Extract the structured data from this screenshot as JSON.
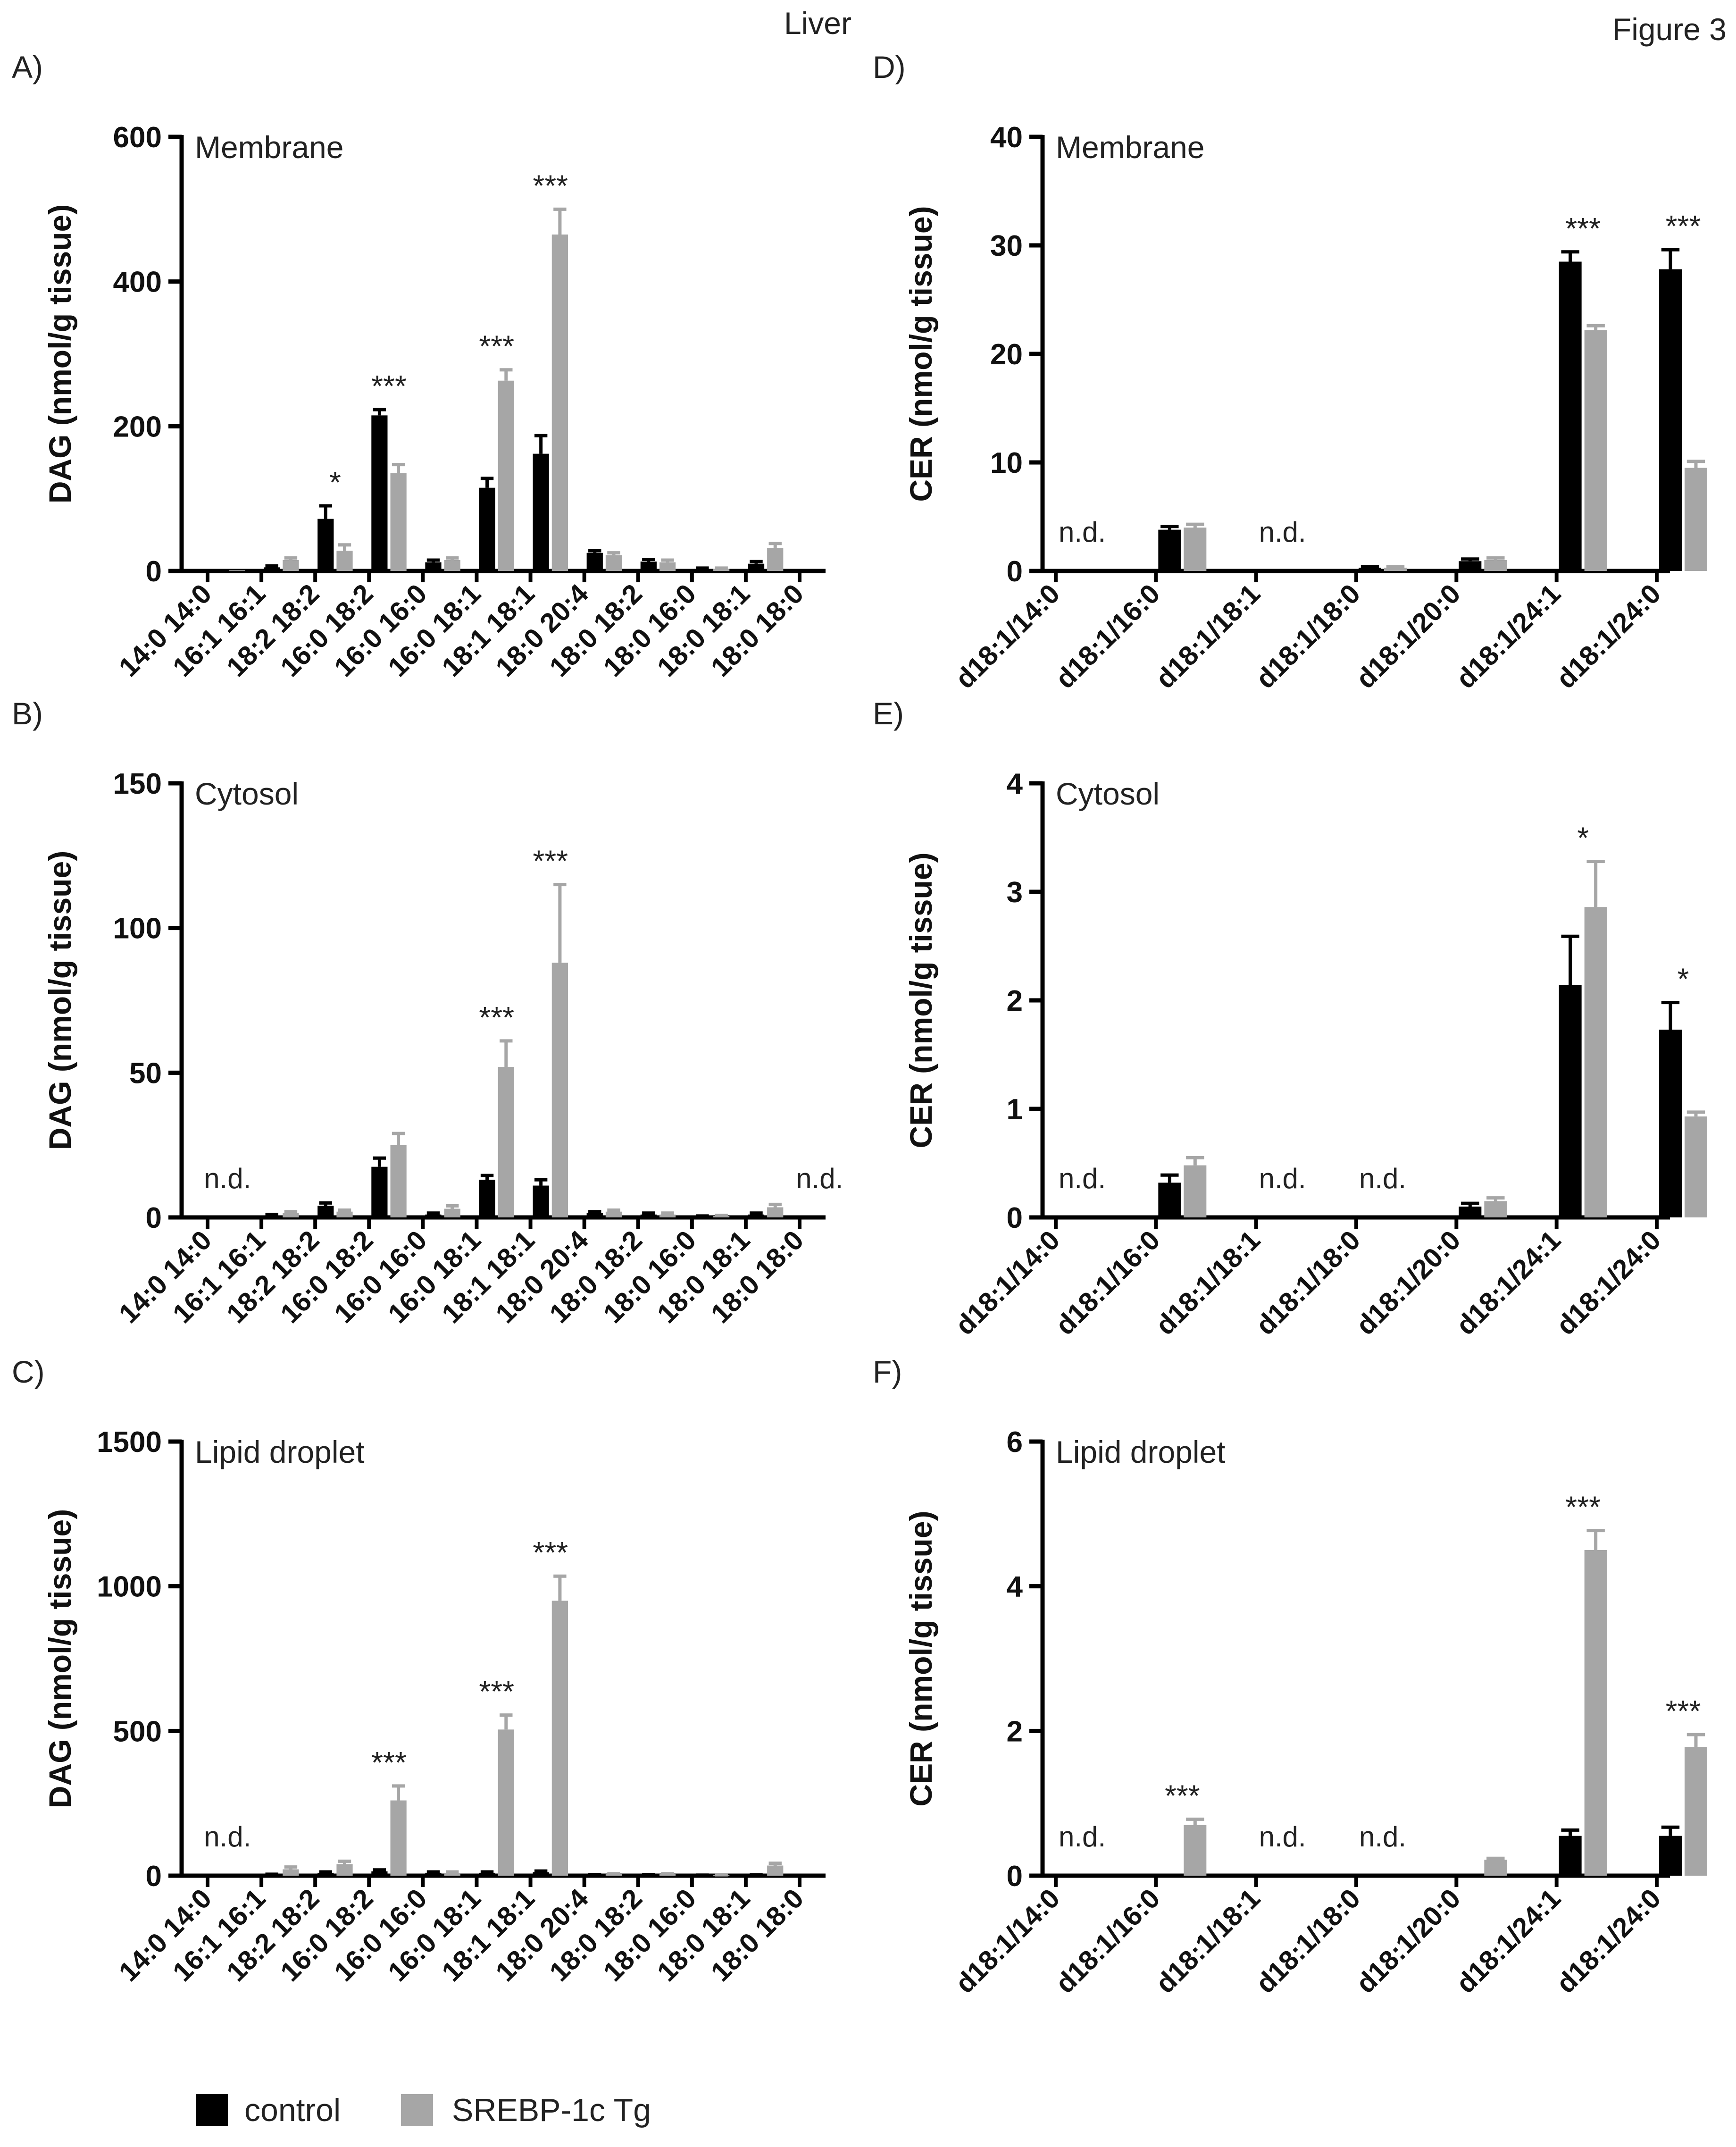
{
  "header": {
    "tissue_label": "Liver",
    "figure_label": "Figure 3"
  },
  "legend": {
    "items": [
      {
        "label": "control",
        "color": "#000000"
      },
      {
        "label": "SREBP-1c Tg",
        "color": "#a6a6a6"
      }
    ]
  },
  "colors": {
    "control": "#000000",
    "srebp": "#a6a6a6",
    "axis": "#000000"
  },
  "chart_data": [
    {
      "panel": "A)",
      "type": "bar",
      "title": "Membrane",
      "ylabel": "DAG (nmol/g tissue)",
      "xlabel": "",
      "ylim": [
        0,
        600
      ],
      "yticks": [
        0,
        200,
        400,
        600
      ],
      "categories": [
        "14:0 14:0",
        "16:1 16:1",
        "18:2 18:2",
        "16:0 18:2",
        "16:0 16:0",
        "16:0 18:1",
        "18:1 18:1",
        "18:0 20:4",
        "18:0 18:2",
        "18:0 16:0",
        "18:0 18:1",
        "18:0 18:0"
      ],
      "series": [
        {
          "name": "control",
          "values": [
            1,
            5,
            72,
            215,
            12,
            115,
            162,
            25,
            13,
            3,
            10,
            0
          ],
          "errors": [
            0,
            2,
            18,
            8,
            3,
            13,
            25,
            3,
            3,
            1,
            3,
            0
          ]
        },
        {
          "name": "SREBP-1c Tg",
          "values": [
            1,
            15,
            28,
            135,
            15,
            263,
            465,
            22,
            12,
            3,
            32,
            0
          ],
          "errors": [
            0,
            3,
            8,
            12,
            3,
            15,
            35,
            3,
            3,
            1,
            6,
            0
          ]
        }
      ],
      "annotations": [
        {
          "category": "18:2 18:2",
          "text": "*"
        },
        {
          "category": "16:0 18:2",
          "text": "***"
        },
        {
          "category": "16:0 18:1",
          "text": "***"
        },
        {
          "category": "18:1 18:1",
          "text": "***"
        }
      ]
    },
    {
      "panel": "B)",
      "type": "bar",
      "title": "Cytosol",
      "ylabel": "DAG (nmol/g tissue)",
      "xlabel": "",
      "ylim": [
        0,
        150
      ],
      "yticks": [
        0,
        50,
        100,
        150
      ],
      "categories": [
        "14:0 14:0",
        "16:1 16:1",
        "18:2 18:2",
        "16:0 18:2",
        "16:0 16:0",
        "16:0 18:1",
        "18:1 18:1",
        "18:0 20:4",
        "18:0 18:2",
        "18:0 16:0",
        "18:0 18:1",
        "18:0 18:0"
      ],
      "series": [
        {
          "name": "control",
          "values": [
            null,
            0.5,
            4,
            17.5,
            1,
            13,
            11,
            1.5,
            1,
            0.3,
            1,
            null
          ],
          "errors": [
            0,
            0.5,
            1,
            3,
            0.5,
            1.5,
            2,
            0.5,
            0.5,
            0.2,
            0.5,
            0
          ]
        },
        {
          "name": "SREBP-1c Tg",
          "values": [
            null,
            1.5,
            2,
            25,
            3,
            52,
            88,
            2,
            1,
            0.5,
            3.5,
            null
          ],
          "errors": [
            0,
            0.5,
            0.5,
            4,
            1,
            9,
            27,
            0.5,
            0.5,
            0.2,
            1,
            0
          ]
        }
      ],
      "annotations": [
        {
          "category": "14:0 14:0",
          "text": "n.d."
        },
        {
          "category": "16:0 18:1",
          "text": "***"
        },
        {
          "category": "18:1 18:1",
          "text": "***"
        },
        {
          "category": "18:0 18:0",
          "text": "n.d."
        }
      ]
    },
    {
      "panel": "C)",
      "type": "bar",
      "title": "Lipid droplet",
      "ylabel": "DAG (nmol/g tissue)",
      "xlabel": "",
      "ylim": [
        0,
        1500
      ],
      "yticks": [
        0,
        500,
        1000,
        1500
      ],
      "categories": [
        "14:0 14:0",
        "16:1 16:1",
        "18:2 18:2",
        "16:0 18:2",
        "16:0 16:0",
        "16:0 18:1",
        "18:1 18:1",
        "18:0 20:4",
        "18:0 18:2",
        "18:0 16:0",
        "18:0 18:1",
        "18:0 18:0"
      ],
      "series": [
        {
          "name": "control",
          "values": [
            null,
            3,
            10,
            15,
            10,
            10,
            12,
            3,
            3,
            1,
            2,
            0
          ],
          "errors": [
            0,
            2,
            3,
            5,
            3,
            3,
            4,
            1,
            1,
            1,
            1,
            0
          ]
        },
        {
          "name": "SREBP-1c Tg",
          "values": [
            null,
            22,
            40,
            260,
            10,
            505,
            950,
            5,
            5,
            2,
            35,
            0
          ],
          "errors": [
            0,
            8,
            10,
            50,
            3,
            50,
            85,
            2,
            2,
            1,
            8,
            0
          ]
        }
      ],
      "annotations": [
        {
          "category": "14:0 14:0",
          "text": "n.d."
        },
        {
          "category": "16:0 18:2",
          "text": "***"
        },
        {
          "category": "16:0 18:1",
          "text": "***"
        },
        {
          "category": "18:1 18:1",
          "text": "***"
        }
      ]
    },
    {
      "panel": "D)",
      "type": "bar",
      "title": "Membrane",
      "ylabel": "CER (nmol/g tissue)",
      "xlabel": "",
      "ylim": [
        0,
        40
      ],
      "yticks": [
        0,
        10,
        20,
        30,
        40
      ],
      "categories": [
        "d18:1/14:0",
        "d18:1/16:0",
        "d18:1/18:1",
        "d18:1/18:0",
        "d18:1/20:0",
        "d18:1/24:1",
        "d18:1/24:0"
      ],
      "series": [
        {
          "name": "control",
          "values": [
            null,
            3.8,
            null,
            0.3,
            0.9,
            28.5,
            27.8
          ],
          "errors": [
            0,
            0.3,
            0,
            0.1,
            0.2,
            0.9,
            1.8
          ]
        },
        {
          "name": "SREBP-1c Tg",
          "values": [
            null,
            4.0,
            null,
            0.3,
            1.0,
            22.2,
            9.5
          ],
          "errors": [
            0,
            0.3,
            0,
            0.1,
            0.2,
            0.4,
            0.6
          ]
        }
      ],
      "annotations": [
        {
          "category": "d18:1/14:0",
          "text": "n.d."
        },
        {
          "category": "d18:1/18:1",
          "text": "n.d."
        },
        {
          "category": "d18:1/24:1",
          "text": "***"
        },
        {
          "category": "d18:1/24:0",
          "text": "***"
        }
      ]
    },
    {
      "panel": "E)",
      "type": "bar",
      "title": "Cytosol",
      "ylabel": "CER (nmol/g tissue)",
      "xlabel": "",
      "ylim": [
        0,
        4
      ],
      "yticks": [
        0,
        1,
        2,
        3,
        4
      ],
      "categories": [
        "d18:1/14:0",
        "d18:1/16:0",
        "d18:1/18:1",
        "d18:1/18:0",
        "d18:1/20:0",
        "d18:1/24:1",
        "d18:1/24:0"
      ],
      "series": [
        {
          "name": "control",
          "values": [
            null,
            0.32,
            null,
            null,
            0.1,
            2.14,
            1.73
          ],
          "errors": [
            0,
            0.07,
            0,
            0,
            0.03,
            0.45,
            0.25
          ]
        },
        {
          "name": "SREBP-1c Tg",
          "values": [
            null,
            0.48,
            null,
            null,
            0.15,
            2.86,
            0.93
          ],
          "errors": [
            0,
            0.07,
            0,
            0,
            0.03,
            0.42,
            0.04
          ]
        }
      ],
      "annotations": [
        {
          "category": "d18:1/14:0",
          "text": "n.d."
        },
        {
          "category": "d18:1/18:1",
          "text": "n.d."
        },
        {
          "category": "d18:1/18:0",
          "text": "n.d."
        },
        {
          "category": "d18:1/24:1",
          "text": "*"
        },
        {
          "category": "d18:1/24:0",
          "text": "*"
        }
      ]
    },
    {
      "panel": "F)",
      "type": "bar",
      "title": "Lipid droplet",
      "ylabel": "CER (nmol/g tissue)",
      "xlabel": "",
      "ylim": [
        0,
        6
      ],
      "yticks": [
        0,
        2,
        4,
        6
      ],
      "categories": [
        "d18:1/14:0",
        "d18:1/16:0",
        "d18:1/18:1",
        "d18:1/18:0",
        "d18:1/20:0",
        "d18:1/24:1",
        "d18:1/24:0"
      ],
      "series": [
        {
          "name": "control",
          "values": [
            null,
            0,
            null,
            null,
            0,
            0.55,
            0.55
          ],
          "errors": [
            0,
            0,
            0,
            0,
            0,
            0.08,
            0.12
          ]
        },
        {
          "name": "SREBP-1c Tg",
          "values": [
            null,
            0.7,
            null,
            null,
            0.22,
            4.5,
            1.78
          ],
          "errors": [
            0,
            0.08,
            0,
            0,
            0.02,
            0.27,
            0.17
          ]
        }
      ],
      "annotations": [
        {
          "category": "d18:1/14:0",
          "text": "n.d."
        },
        {
          "category": "d18:1/16:0",
          "text": "***"
        },
        {
          "category": "d18:1/18:1",
          "text": "n.d."
        },
        {
          "category": "d18:1/18:0",
          "text": "n.d."
        },
        {
          "category": "d18:1/24:1",
          "text": "***"
        },
        {
          "category": "d18:1/24:0",
          "text": "***"
        }
      ]
    }
  ]
}
